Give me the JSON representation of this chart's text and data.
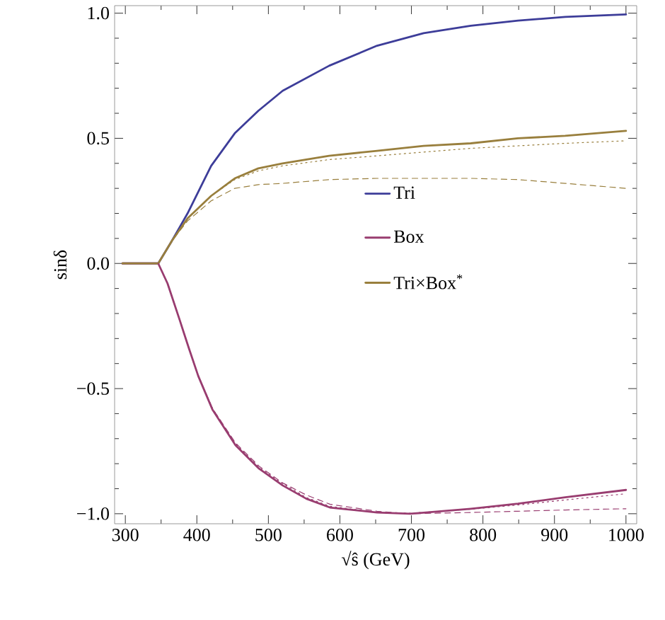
{
  "chart_data": {
    "type": "line",
    "xlabel": "√ŝ  (GeV)",
    "ylabel": "sinδ",
    "xlim": [
      285,
      1015
    ],
    "ylim": [
      -1.04,
      1.03
    ],
    "xticks": [
      300,
      400,
      500,
      600,
      700,
      800,
      900,
      1000
    ],
    "yticks": [
      {
        "value": -1.0,
        "label": "−1.0"
      },
      {
        "value": -0.5,
        "label": "−0.5"
      },
      {
        "value": 0.0,
        "label": "0.0"
      },
      {
        "value": 0.5,
        "label": "0.5"
      },
      {
        "value": 1.0,
        "label": "1.0"
      }
    ],
    "grid": false,
    "legend": "center",
    "marker": "none",
    "series": [
      {
        "name": "Tri",
        "color": "#3d3d99",
        "line_style": "solid",
        "x": [
          296,
          346,
          365,
          387,
          420,
          453,
          486,
          520,
          585,
          652,
          717,
          783,
          849,
          915,
          1000
        ],
        "values": [
          0,
          0,
          0.09,
          0.2,
          0.39,
          0.52,
          0.61,
          0.69,
          0.79,
          0.87,
          0.92,
          0.95,
          0.97,
          0.985,
          0.995
        ]
      },
      {
        "name": "Box",
        "color": "#993d70",
        "line_style": "solid",
        "x": [
          296,
          346,
          359,
          376,
          389,
          402,
          422,
          454,
          487,
          520,
          553,
          586,
          652,
          698,
          717,
          783,
          849,
          915,
          1000
        ],
        "values": [
          0,
          0,
          -0.08,
          -0.226,
          -0.34,
          -0.45,
          -0.585,
          -0.726,
          -0.82,
          -0.887,
          -0.94,
          -0.975,
          -0.995,
          -1.0,
          -0.996,
          -0.98,
          -0.96,
          -0.934,
          -0.905
        ]
      },
      {
        "name": "Tri×Box$^{*}$",
        "color": "#997f3d",
        "line_style": "solid",
        "x": [
          296,
          346,
          365,
          387,
          420,
          453,
          486,
          520,
          585,
          652,
          717,
          783,
          849,
          915,
          1000
        ],
        "values": [
          0,
          0,
          0.09,
          0.18,
          0.27,
          0.34,
          0.38,
          0.4,
          0.43,
          0.45,
          0.47,
          0.48,
          0.5,
          0.51,
          0.53
        ]
      },
      {
        "color": "#997f3d",
        "line_style": "dotted",
        "x": [
          346,
          365,
          387,
          420,
          453,
          486,
          520,
          585,
          652,
          717,
          783,
          849,
          915,
          1000
        ],
        "values": [
          0,
          0.09,
          0.18,
          0.27,
          0.335,
          0.37,
          0.39,
          0.415,
          0.43,
          0.445,
          0.46,
          0.47,
          0.48,
          0.49
        ]
      },
      {
        "color": "#997f3d",
        "line_style": "dashed",
        "x": [
          346,
          365,
          387,
          420,
          453,
          486,
          520,
          585,
          652,
          717,
          783,
          849,
          915,
          1000
        ],
        "values": [
          0,
          0.09,
          0.17,
          0.25,
          0.3,
          0.315,
          0.32,
          0.335,
          0.34,
          0.34,
          0.34,
          0.335,
          0.32,
          0.3
        ]
      },
      {
        "color": "#993d70",
        "line_style": "dotted",
        "x": [
          346,
          359,
          376,
          389,
          402,
          422,
          454,
          487,
          520,
          553,
          586,
          652,
          698,
          783,
          849,
          915,
          1000
        ],
        "values": [
          0,
          -0.08,
          -0.226,
          -0.34,
          -0.45,
          -0.58,
          -0.72,
          -0.815,
          -0.88,
          -0.935,
          -0.97,
          -0.995,
          -0.998,
          -0.982,
          -0.965,
          -0.945,
          -0.92
        ]
      },
      {
        "color": "#993d70",
        "line_style": "dashed",
        "x": [
          346,
          359,
          376,
          389,
          402,
          422,
          454,
          487,
          520,
          553,
          586,
          652,
          698,
          783,
          849,
          915,
          1000
        ],
        "values": [
          0,
          -0.08,
          -0.226,
          -0.34,
          -0.45,
          -0.58,
          -0.717,
          -0.81,
          -0.877,
          -0.925,
          -0.962,
          -0.99,
          -1.0,
          -0.995,
          -0.99,
          -0.985,
          -0.98
        ]
      }
    ]
  }
}
